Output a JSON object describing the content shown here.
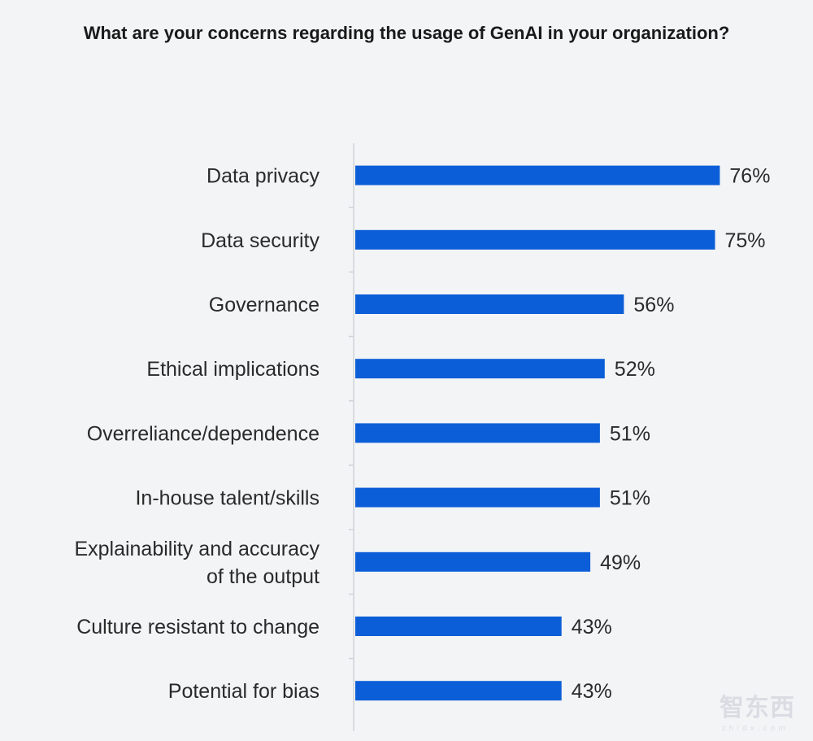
{
  "title": "What are your concerns regarding the usage of GenAI in your organization?",
  "chart_data": {
    "type": "bar",
    "orientation": "horizontal",
    "title": "What are your concerns regarding the usage of GenAI in your organization?",
    "categories": [
      [
        "Data privacy"
      ],
      [
        "Data security"
      ],
      [
        "Governance"
      ],
      [
        "Ethical implications"
      ],
      [
        "Overreliance/dependence"
      ],
      [
        "In-house talent/skills"
      ],
      [
        "Explainability and accuracy",
        "of the output"
      ],
      [
        "Culture resistant to change"
      ],
      [
        "Potential for bias"
      ]
    ],
    "values": [
      76,
      75,
      56,
      52,
      51,
      51,
      49,
      43,
      43
    ],
    "value_labels": [
      "76%",
      "75%",
      "56%",
      "52%",
      "51%",
      "51%",
      "49%",
      "43%",
      "43%"
    ],
    "unit": "%",
    "xlim": [
      0,
      100
    ],
    "bar_color": "#0b5ed7",
    "axis_color": "#cfd3d8",
    "grid": false
  },
  "watermark": {
    "text": "智东西",
    "subtext": "zhidx.com"
  }
}
